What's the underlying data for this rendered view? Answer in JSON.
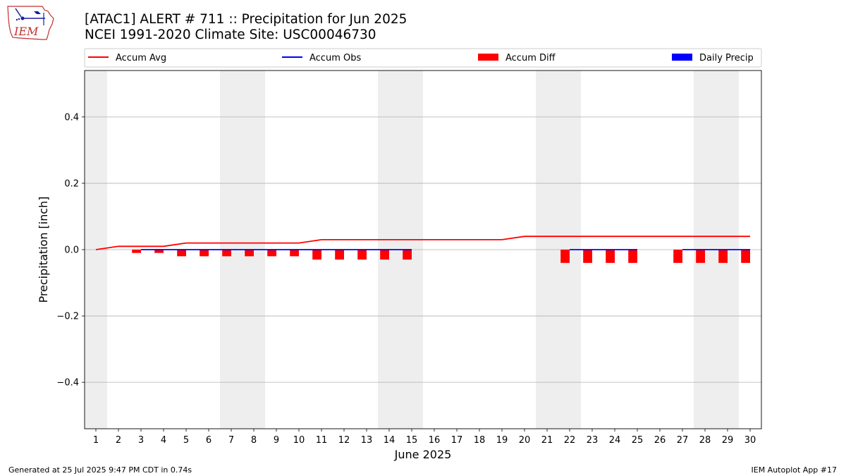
{
  "header": {
    "title_line1": "[ATAC1] ALERT # 711 :: Precipitation for Jun 2025",
    "title_line2": "NCEI 1991-2020 Climate Site: USC00046730",
    "logo_text": "IEM"
  },
  "footer": {
    "left": "Generated at 25 Jul 2025 9:47 PM CDT in 0.74s",
    "right": "IEM Autoplot App #17"
  },
  "colors": {
    "accum_avg": "#ff0000",
    "accum_obs": "#0000ff",
    "accum_diff": "#ff0000",
    "daily_precip": "#0000ff",
    "weekend_shade": "#eeeeee",
    "grid": "#b0b0b0"
  },
  "chart_data": {
    "type": "line",
    "xlabel": "June 2025",
    "ylabel": "Precipitation [inch]",
    "xlim": [
      0.5,
      30.5
    ],
    "ylim": [
      -0.54,
      0.54
    ],
    "yticks": [
      -0.4,
      -0.2,
      0.0,
      0.2,
      0.4
    ],
    "ytick_labels": [
      "−0.4",
      "−0.2",
      "0.0",
      "0.2",
      "0.4"
    ],
    "x": [
      1,
      2,
      3,
      4,
      5,
      6,
      7,
      8,
      9,
      10,
      11,
      12,
      13,
      14,
      15,
      16,
      17,
      18,
      19,
      20,
      21,
      22,
      23,
      24,
      25,
      26,
      27,
      28,
      29,
      30
    ],
    "xtick_labels": [
      "1",
      "2",
      "3",
      "4",
      "5",
      "6",
      "7",
      "8",
      "9",
      "10",
      "11",
      "12",
      "13",
      "14",
      "15",
      "16",
      "17",
      "18",
      "19",
      "20",
      "21",
      "22",
      "23",
      "24",
      "25",
      "26",
      "27",
      "28",
      "29",
      "30"
    ],
    "shaded_days": [
      1,
      7,
      8,
      14,
      15,
      21,
      22,
      28,
      29
    ],
    "grid": "horizontal",
    "legend": {
      "placement": "top",
      "entries": [
        {
          "label": "Accum Avg",
          "kind": "line",
          "color": "#ff0000"
        },
        {
          "label": "Accum Obs",
          "kind": "line",
          "color": "#0000ff"
        },
        {
          "label": "Accum Diff",
          "kind": "bar",
          "color": "#ff0000"
        },
        {
          "label": "Daily Precip",
          "kind": "bar",
          "color": "#0000ff"
        }
      ]
    },
    "series": [
      {
        "name": "Accum Avg",
        "type": "line",
        "x": [
          1,
          2,
          3,
          4,
          5,
          6,
          7,
          8,
          9,
          10,
          11,
          12,
          13,
          14,
          15,
          16,
          17,
          18,
          19,
          20,
          21,
          22,
          23,
          24,
          25,
          26,
          27,
          28,
          29,
          30
        ],
        "values": [
          0.0,
          0.01,
          0.01,
          0.01,
          0.02,
          0.02,
          0.02,
          0.02,
          0.02,
          0.02,
          0.03,
          0.03,
          0.03,
          0.03,
          0.03,
          0.03,
          0.03,
          0.03,
          0.03,
          0.04,
          0.04,
          0.04,
          0.04,
          0.04,
          0.04,
          0.04,
          0.04,
          0.04,
          0.04,
          0.04
        ]
      },
      {
        "name": "Accum Obs",
        "type": "line",
        "segments": [
          {
            "x": [
              3,
              4,
              5,
              6,
              7,
              8,
              9,
              10,
              11,
              12,
              13,
              14,
              15
            ],
            "values": [
              0,
              0,
              0,
              0,
              0,
              0,
              0,
              0,
              0,
              0,
              0,
              0,
              0
            ]
          },
          {
            "x": [
              22,
              23,
              24,
              25
            ],
            "values": [
              0,
              0,
              0,
              0
            ]
          },
          {
            "x": [
              27,
              28,
              29,
              30
            ],
            "values": [
              0,
              0,
              0,
              0
            ]
          }
        ]
      },
      {
        "name": "Accum Diff",
        "type": "bar",
        "x": [
          3,
          4,
          5,
          6,
          7,
          8,
          9,
          10,
          11,
          12,
          13,
          14,
          15,
          22,
          23,
          24,
          25,
          27,
          28,
          29,
          30
        ],
        "values": [
          -0.01,
          -0.01,
          -0.02,
          -0.02,
          -0.02,
          -0.02,
          -0.02,
          -0.02,
          -0.03,
          -0.03,
          -0.03,
          -0.03,
          -0.03,
          -0.04,
          -0.04,
          -0.04,
          -0.04,
          -0.04,
          -0.04,
          -0.04,
          -0.04
        ]
      },
      {
        "name": "Daily Precip",
        "type": "bar",
        "x": [
          3,
          4,
          5,
          6,
          7,
          8,
          9,
          10,
          11,
          12,
          13,
          14,
          15,
          22,
          23,
          24,
          25,
          27,
          28,
          29,
          30
        ],
        "values": [
          0,
          0,
          0,
          0,
          0,
          0,
          0,
          0,
          0,
          0,
          0,
          0,
          0,
          0,
          0,
          0,
          0,
          0,
          0,
          0,
          0
        ]
      }
    ]
  }
}
